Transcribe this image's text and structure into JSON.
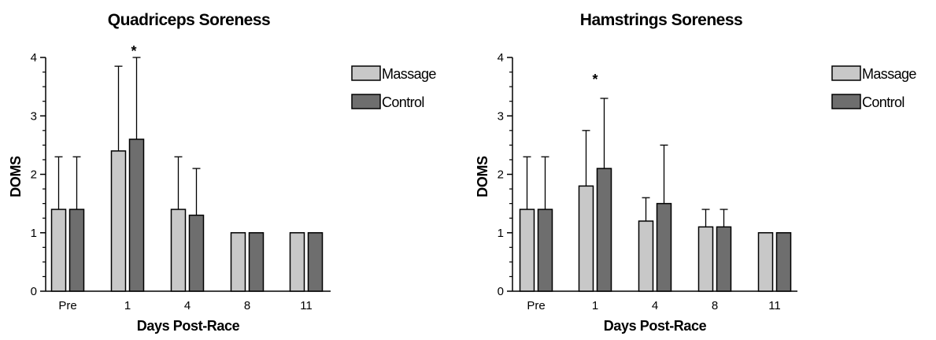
{
  "colors": {
    "massage": "#c8c8c8",
    "control": "#6e6e6e",
    "stroke": "#000000"
  },
  "chart_data": [
    {
      "type": "bar",
      "title": "Quadriceps Soreness",
      "xlabel": "Days Post-Race",
      "ylabel": "DOMS",
      "ylim": [
        0,
        4
      ],
      "yticks": [
        "0",
        "1",
        "2",
        "3",
        "4"
      ],
      "categories": [
        "Pre",
        "1",
        "4",
        "8",
        "11"
      ],
      "legend_position": "top-right",
      "series": [
        {
          "name": "Massage",
          "values": [
            1.4,
            2.4,
            1.4,
            1.0,
            1.0
          ],
          "error_upper": [
            2.3,
            3.85,
            2.3,
            1.0,
            1.0
          ]
        },
        {
          "name": "Control",
          "values": [
            1.4,
            2.6,
            1.3,
            1.0,
            1.0
          ],
          "error_upper": [
            2.3,
            4.0,
            2.1,
            1.0,
            1.0
          ]
        }
      ],
      "annotations": [
        {
          "text": "*",
          "category": "1"
        }
      ]
    },
    {
      "type": "bar",
      "title": "Hamstrings Soreness",
      "xlabel": "Days Post-Race",
      "ylabel": "DOMS",
      "ylim": [
        0,
        4
      ],
      "yticks": [
        "0",
        "1",
        "2",
        "3",
        "4"
      ],
      "categories": [
        "Pre",
        "1",
        "4",
        "8",
        "11"
      ],
      "legend_position": "top-right",
      "series": [
        {
          "name": "Massage",
          "values": [
            1.4,
            1.8,
            1.2,
            1.1,
            1.0
          ],
          "error_upper": [
            2.3,
            2.75,
            1.6,
            1.4,
            1.0
          ]
        },
        {
          "name": "Control",
          "values": [
            1.4,
            2.1,
            1.5,
            1.1,
            1.0
          ],
          "error_upper": [
            2.3,
            3.3,
            2.5,
            1.4,
            1.0
          ]
        }
      ],
      "annotations": [
        {
          "text": "*",
          "category": "1"
        }
      ]
    }
  ]
}
